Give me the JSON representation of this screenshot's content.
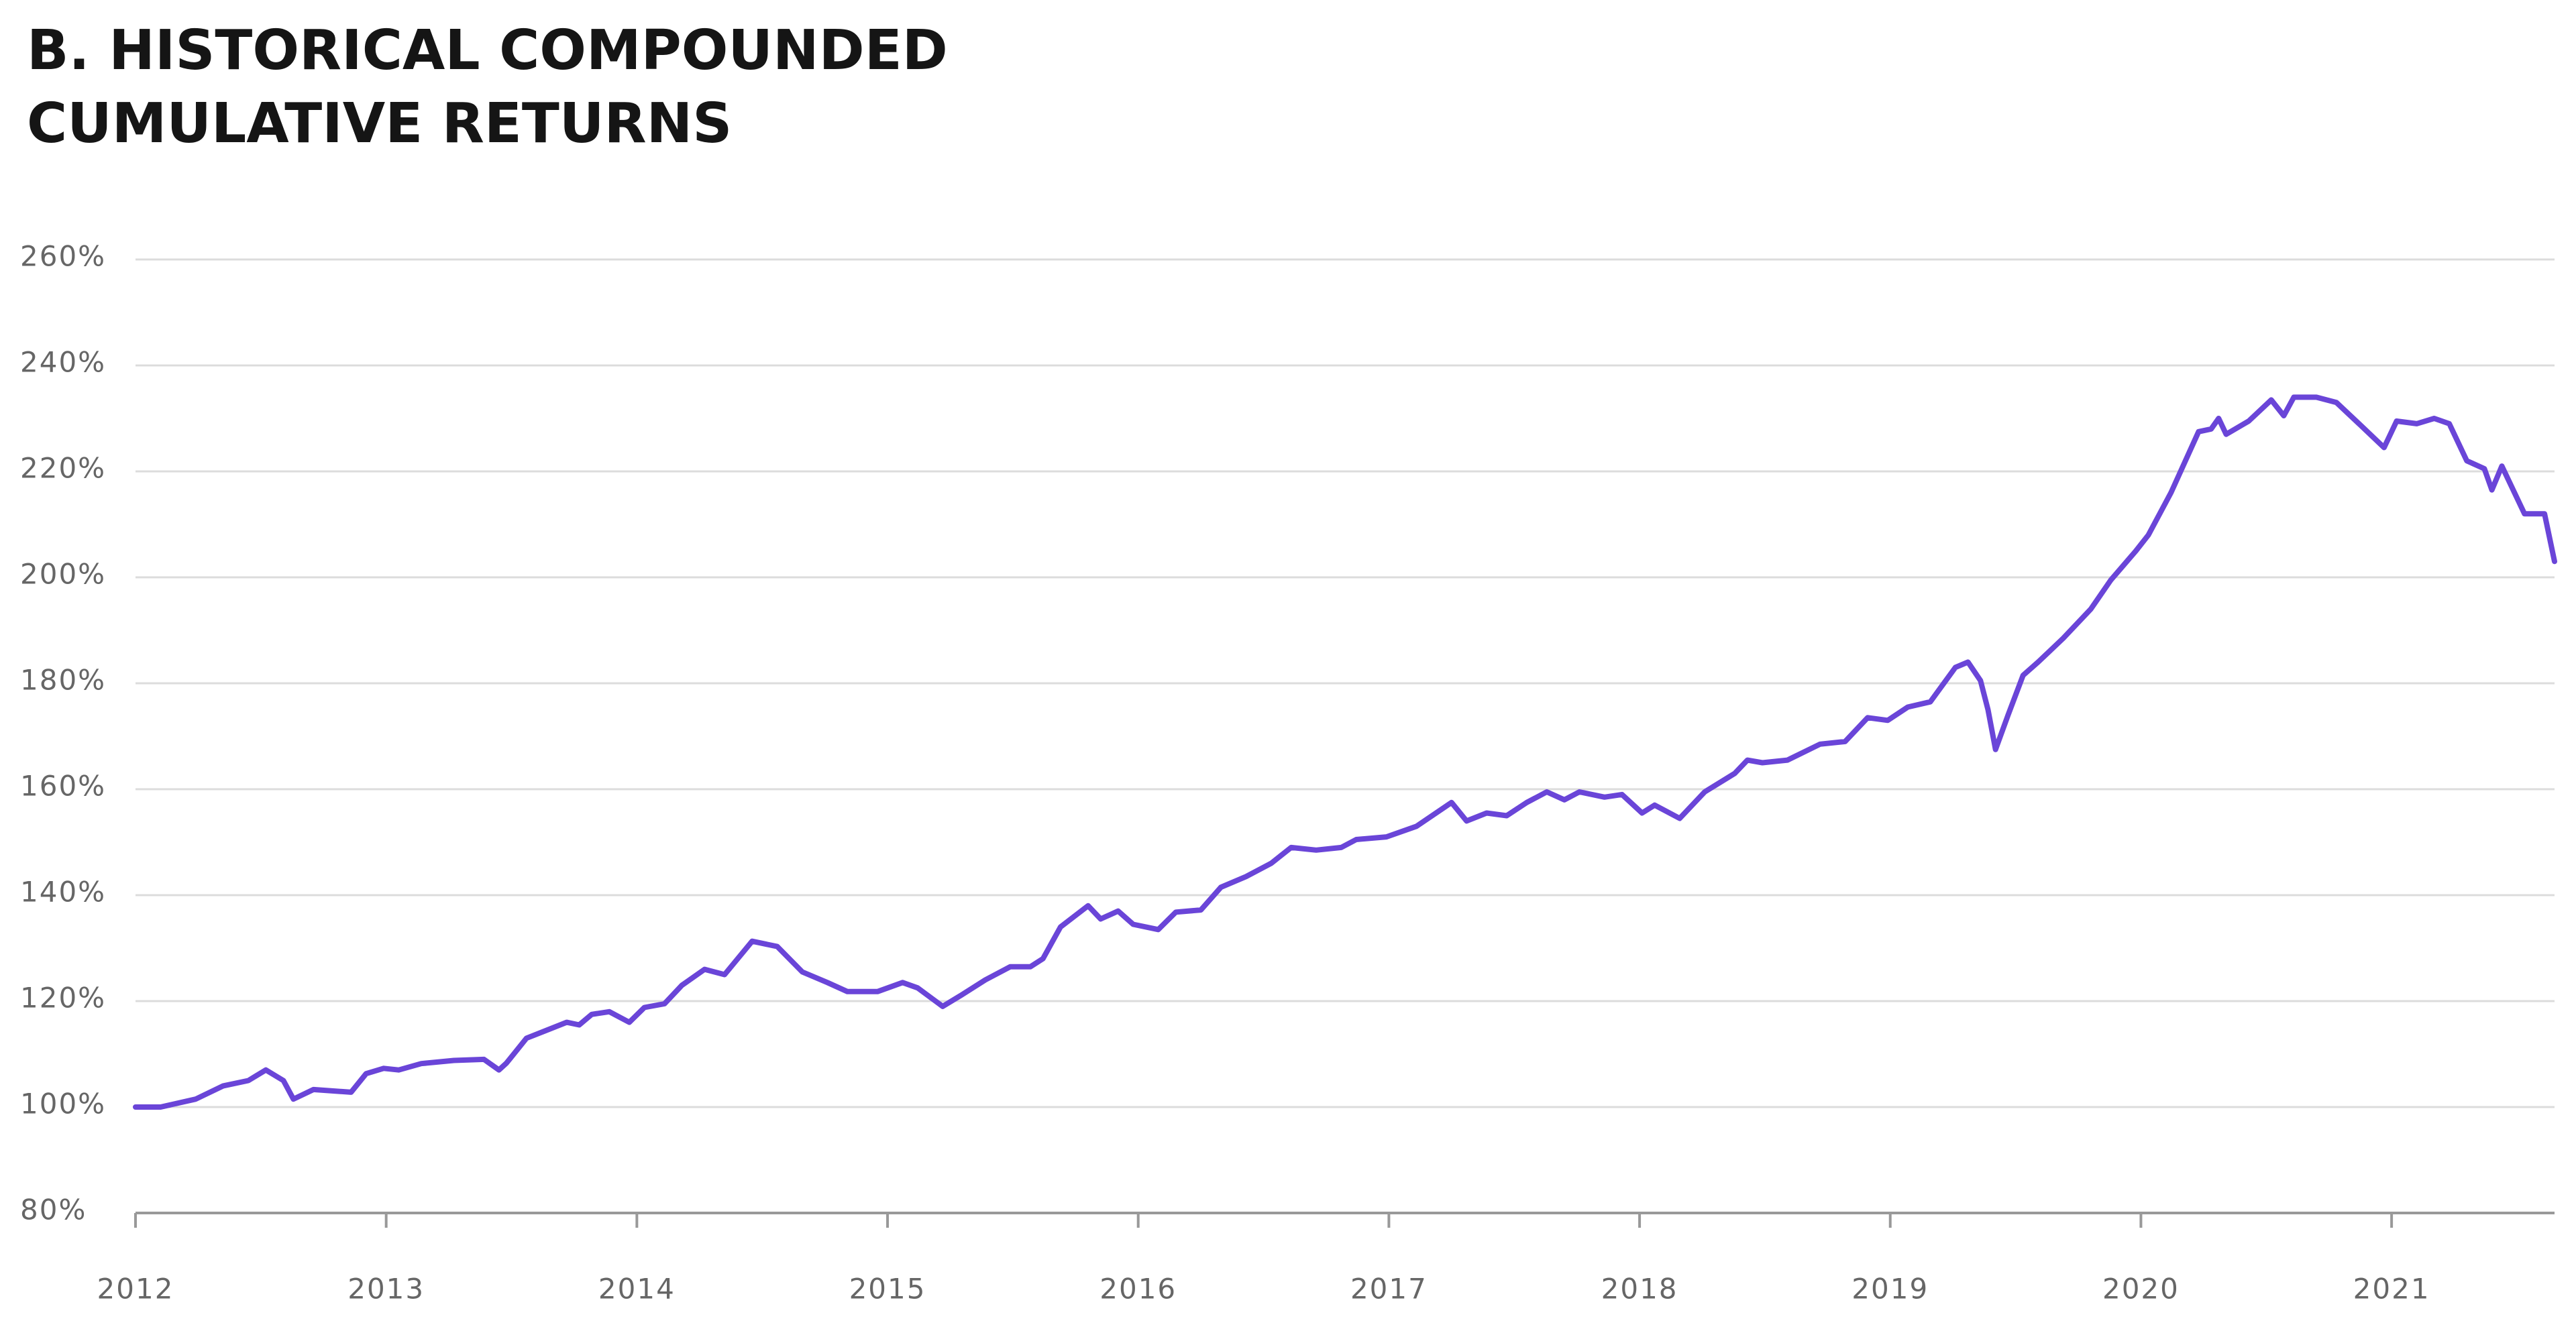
{
  "chart_data": {
    "type": "line",
    "title": [
      "B. HISTORICAL COMPOUNDED",
      "CUMULATIVE RETURNS"
    ],
    "x": [
      2012.0,
      2012.1,
      2012.24,
      2012.35,
      2012.45,
      2012.52,
      2012.59,
      2012.63,
      2012.71,
      2012.86,
      2012.92,
      2012.99,
      2013.05,
      2013.14,
      2013.27,
      2013.39,
      2013.45,
      2013.48,
      2013.56,
      2013.64,
      2013.72,
      2013.77,
      2013.82,
      2013.89,
      2013.97,
      2014.03,
      2014.11,
      2014.18,
      2014.27,
      2014.35,
      2014.46,
      2014.56,
      2014.66,
      2014.76,
      2014.84,
      2014.96,
      2015.06,
      2015.12,
      2015.22,
      2015.29,
      2015.39,
      2015.49,
      2015.57,
      2015.62,
      2015.69,
      2015.8,
      2015.85,
      2015.92,
      2015.98,
      2016.08,
      2016.15,
      2016.25,
      2016.33,
      2016.43,
      2016.53,
      2016.61,
      2016.71,
      2016.81,
      2016.87,
      2016.99,
      2017.11,
      2017.25,
      2017.31,
      2017.39,
      2017.47,
      2017.55,
      2017.63,
      2017.7,
      2017.76,
      2017.86,
      2017.93,
      2018.01,
      2018.06,
      2018.16,
      2018.26,
      2018.38,
      2018.43,
      2018.49,
      2018.59,
      2018.72,
      2018.82,
      2018.91,
      2018.99,
      2019.07,
      2019.16,
      2019.26,
      2019.31,
      2019.36,
      2019.39,
      2019.42,
      2019.47,
      2019.53,
      2019.59,
      2019.69,
      2019.8,
      2019.88,
      2019.98,
      2020.03,
      2020.12,
      2020.23,
      2020.28,
      2020.31,
      2020.34,
      2020.43,
      2020.52,
      2020.57,
      2020.61,
      2020.7,
      2020.78,
      2020.87,
      2020.97,
      2021.02,
      2021.1,
      2021.17,
      2021.23,
      2021.3,
      2021.37,
      2021.4,
      2021.44,
      2021.53,
      2021.61,
      2021.65
    ],
    "series": [
      {
        "color": "#6a45d8",
        "values": [
          100,
          100,
          101.5,
          104,
          105,
          107,
          105,
          101.5,
          103.3,
          102.8,
          106.3,
          107.3,
          107,
          108.2,
          108.8,
          109,
          107,
          108.3,
          113,
          114.5,
          116,
          115.5,
          117.5,
          118,
          116,
          118.8,
          119.5,
          123,
          126,
          125,
          131.3,
          130.3,
          125.5,
          123.5,
          121.8,
          121.8,
          123.5,
          122.5,
          119,
          121,
          124,
          126.5,
          126.5,
          128,
          134,
          138,
          135.5,
          137,
          134.5,
          133.5,
          136.8,
          137.2,
          141.5,
          143.5,
          146,
          149,
          148.5,
          149,
          150.5,
          151,
          153,
          157.5,
          154,
          155.5,
          155,
          157.5,
          159.5,
          158,
          159.5,
          158.5,
          159,
          155.5,
          157,
          154.5,
          159.5,
          163,
          165.5,
          165,
          165.5,
          168.5,
          169,
          173.5,
          173,
          175.5,
          176.5,
          183,
          184,
          180.5,
          175,
          167.5,
          174,
          181.5,
          184,
          188.5,
          194,
          199.5,
          205,
          208,
          216,
          227.5,
          228,
          230,
          227,
          229.5,
          233.5,
          230.5,
          234,
          234,
          233,
          229,
          224.5,
          229.5,
          229,
          230,
          229,
          222,
          220.5,
          216.5,
          221,
          212,
          212,
          203
        ]
      }
    ],
    "xlim": [
      2012,
      2021.65
    ],
    "xticks": [
      2012,
      2013,
      2014,
      2015,
      2016,
      2017,
      2018,
      2019,
      2020,
      2021
    ],
    "ylim": [
      80,
      260
    ],
    "yticks": [
      {
        "value": 80,
        "label": "80%"
      },
      {
        "value": 100,
        "label": "100%"
      },
      {
        "value": 120,
        "label": "120%"
      },
      {
        "value": 140,
        "label": "140%"
      },
      {
        "value": 160,
        "label": "160%"
      },
      {
        "value": 180,
        "label": "180%"
      },
      {
        "value": 200,
        "label": "200%"
      },
      {
        "value": 220,
        "label": "220%"
      },
      {
        "value": 240,
        "label": "240%"
      },
      {
        "value": 260,
        "label": "260%"
      }
    ],
    "grid": true
  }
}
